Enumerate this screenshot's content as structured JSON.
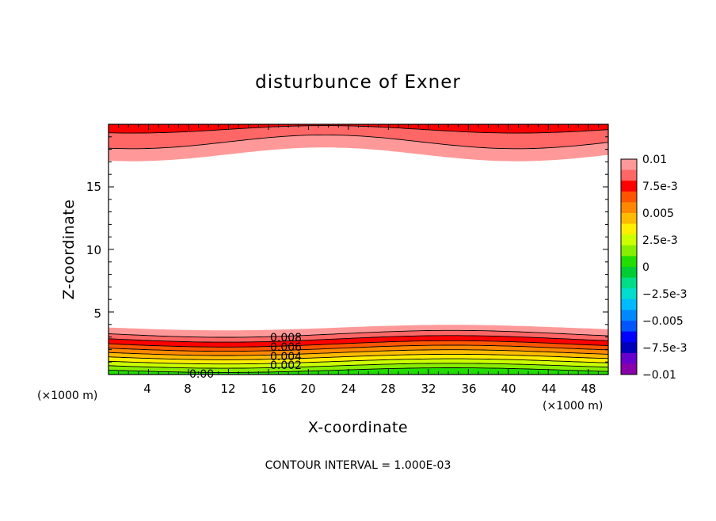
{
  "chart_data": {
    "type": "heatmap",
    "title": "disturbunce of Exner",
    "xlabel": "X-coordinate",
    "ylabel": "Z-coordinate",
    "x_unit_left": "(×1000 m)",
    "x_unit_right": "(×1000 m)",
    "xlim": [
      0,
      50
    ],
    "ylim": [
      0,
      20
    ],
    "x_ticks": [
      "4",
      "8",
      "12",
      "16",
      "20",
      "24",
      "28",
      "32",
      "36",
      "40",
      "44",
      "48"
    ],
    "y_ticks": [
      "5",
      "10",
      "15"
    ],
    "contour_interval_text": "CONTOUR INTERVAL = 1.000E-03",
    "contour_labels": [
      "0.008",
      "0.006",
      "0.004",
      "0.002",
      "0.00"
    ],
    "colorbar": {
      "labels": [
        "0.01",
        "7.5e-3",
        "0.005",
        "2.5e-3",
        "0",
        "−2.5e-3",
        "−0.005",
        "−7.5e-3",
        "−0.01"
      ],
      "colors": [
        "#ff9999",
        "#ff6666",
        "#ff0000",
        "#ff5500",
        "#ff8800",
        "#ffbb00",
        "#ffee00",
        "#ccff00",
        "#88ee00",
        "#22dd00",
        "#00cc33",
        "#00dd88",
        "#00ddcc",
        "#00bbff",
        "#0088ff",
        "#0055ff",
        "#0000ff",
        "#0000bb",
        "#6600cc",
        "#8800aa"
      ]
    },
    "grid": false,
    "legend_position": "right"
  }
}
